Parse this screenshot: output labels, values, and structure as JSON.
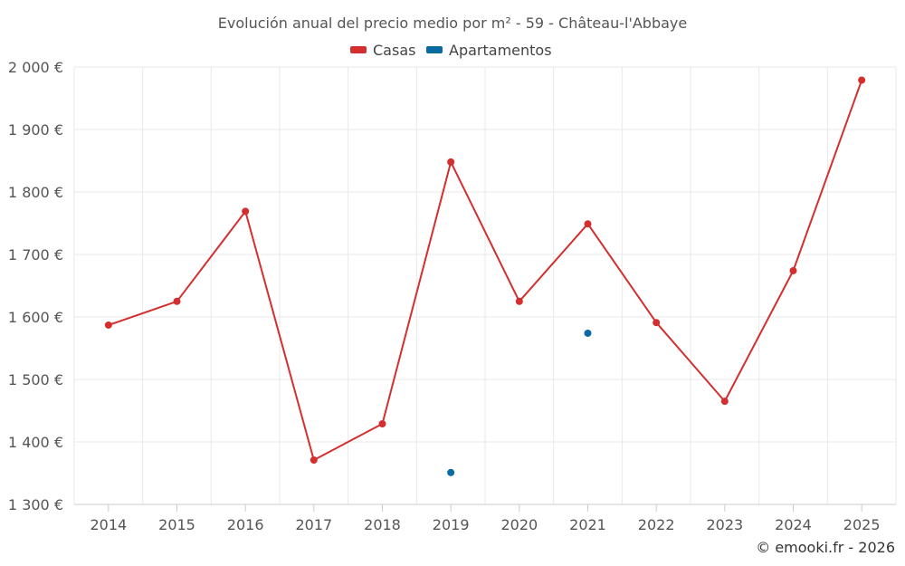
{
  "chart_data": {
    "type": "line",
    "title": "Evolución anual del precio medio por m² - 59 - Château-l'Abbaye",
    "categories": [
      "2014",
      "2015",
      "2016",
      "2017",
      "2018",
      "2019",
      "2020",
      "2021",
      "2022",
      "2023",
      "2024",
      "2025"
    ],
    "series": [
      {
        "name": "Casas",
        "color": "#d32f2f",
        "values": [
          1587,
          1625,
          1769,
          1371,
          1429,
          1848,
          1625,
          1749,
          1591,
          1465,
          1674,
          1979
        ]
      },
      {
        "name": "Apartamentos",
        "color": "#0a6aa1",
        "values": [
          null,
          null,
          null,
          null,
          null,
          1351,
          null,
          1574,
          null,
          null,
          null,
          null
        ]
      }
    ],
    "y_ticks": [
      1300,
      1400,
      1500,
      1600,
      1700,
      1800,
      1900,
      2000
    ],
    "y_tick_labels": [
      "1 300 €",
      "1 400 €",
      "1 500 €",
      "1 600 €",
      "1 700 €",
      "1 800 €",
      "1 900 €",
      "2 000 €"
    ],
    "ylim": [
      1300,
      2000
    ],
    "legend_position": "top-center",
    "grid": true
  },
  "credit": "© emooki.fr - 2026"
}
